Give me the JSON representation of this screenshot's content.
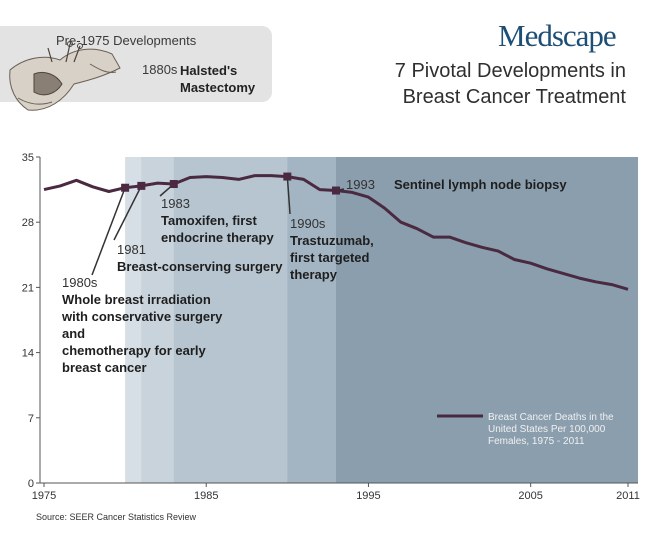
{
  "header": {
    "logo_text": "Medscape",
    "title_line1": "7 Pivotal Developments in",
    "title_line2": "Breast Cancer Treatment"
  },
  "pre1975": {
    "title": "Pre-1975 Developments",
    "year": "1880s",
    "event": "Halsted's Mastectomy"
  },
  "source": "Source:  SEER Cancer Statistics Review",
  "colors": {
    "line": "#4a2a40",
    "bands": [
      "#d6dee6",
      "#c9d3dc",
      "#b7c5d0",
      "#a3b4c2",
      "#8b9eae"
    ],
    "legend_text": "#f0f0f0"
  },
  "chart_data": {
    "type": "line",
    "title": "7 Pivotal Developments in Breast Cancer Treatment",
    "xlabel": "",
    "ylabel": "",
    "xlim": [
      1975,
      2011
    ],
    "ylim": [
      0,
      35
    ],
    "x_ticks": [
      "1975",
      "1985",
      "1995",
      "2005",
      "2011"
    ],
    "y_ticks": [
      "0",
      "7",
      "14",
      "21",
      "28",
      "35"
    ],
    "grid": false,
    "legend_position": "bottom-right",
    "series": [
      {
        "name": "Breast Cancer Deaths in the United States Per 100,000 Females, 1975 - 2011",
        "x": [
          1975,
          1976,
          1977,
          1978,
          1979,
          1980,
          1981,
          1982,
          1983,
          1984,
          1985,
          1986,
          1987,
          1988,
          1989,
          1990,
          1991,
          1992,
          1993,
          1994,
          1995,
          1996,
          1997,
          1998,
          1999,
          2000,
          2001,
          2002,
          2003,
          2004,
          2005,
          2006,
          2007,
          2008,
          2009,
          2010,
          2011
        ],
        "y": [
          31.5,
          31.9,
          32.5,
          31.8,
          31.3,
          31.7,
          31.9,
          32.2,
          32.1,
          32.8,
          32.9,
          32.8,
          32.6,
          33.0,
          33.0,
          32.9,
          32.6,
          31.5,
          31.4,
          31.2,
          30.7,
          29.5,
          28.0,
          27.3,
          26.4,
          26.4,
          25.8,
          25.3,
          24.9,
          24.0,
          23.6,
          23.0,
          22.5,
          22.0,
          21.6,
          21.3,
          20.8
        ]
      }
    ],
    "bands_start_years": [
      1980,
      1981,
      1983,
      1990,
      1993
    ],
    "annotations": [
      {
        "year_label": "1980s",
        "lines": [
          "Whole breast irradiation",
          "with conservative surgery",
          "and",
          "chemotherapy for early",
          "breast cancer"
        ],
        "x": 1980,
        "y": 31.7
      },
      {
        "year_label": "1981",
        "lines": [
          "Breast-conserving surgery"
        ],
        "x": 1981,
        "y": 31.9
      },
      {
        "year_label": "1983",
        "lines": [
          "Tamoxifen, first",
          "endocrine therapy"
        ],
        "x": 1983,
        "y": 32.1
      },
      {
        "year_label": "1990s",
        "lines": [
          "Trastuzumab,",
          "first targeted",
          "therapy"
        ],
        "x": 1990,
        "y": 32.9
      },
      {
        "year_label": "1993",
        "lines": [
          "Sentinel lymph node biopsy"
        ],
        "x": 1993,
        "y": 31.4
      }
    ]
  }
}
